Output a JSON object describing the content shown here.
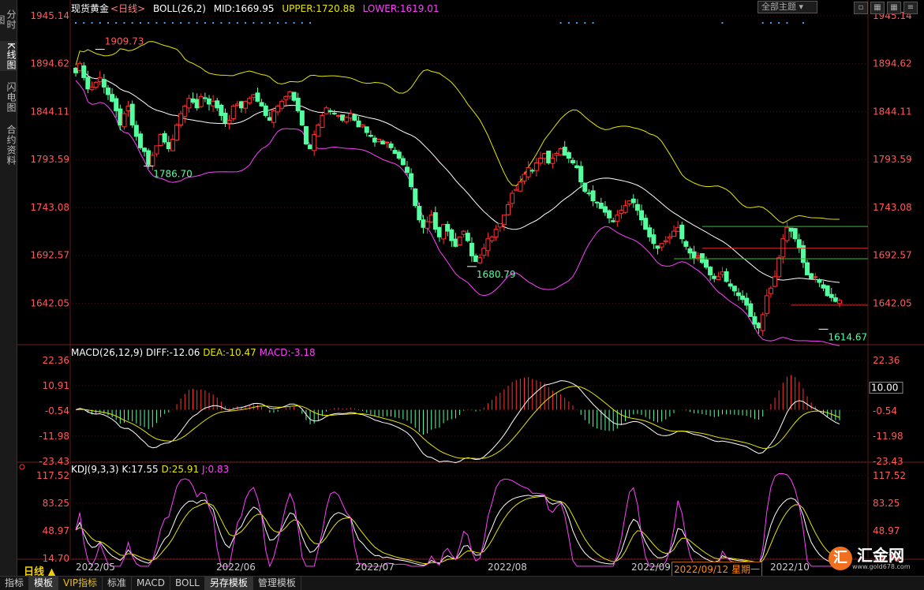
{
  "nav_tabs": [
    {
      "label": "分时图"
    },
    {
      "label": "K线图"
    },
    {
      "label": "闪电图"
    },
    {
      "label": "合约资料"
    }
  ],
  "header": {
    "symbol": "现货黄金",
    "period_tag": "<日线>",
    "boll_name": "BOLL(26,2)",
    "mid": "MID:1669.95",
    "upper": "UPPER:1720.88",
    "lower": "LOWER:1619.01",
    "theme_select": "全部主题"
  },
  "macd_header": {
    "name": "MACD(26,12,9)",
    "diff": "DIFF:-12.06",
    "dea": "DEA:-10.47",
    "macd": "MACD:-3.18"
  },
  "kdj_header": {
    "name": "KDJ(9,3,3)",
    "k": "K:17.55",
    "d": "D:25.91",
    "j": "J:0.83"
  },
  "period_label": "日线 ▲",
  "cursor_label": "2022/09/12 星期一",
  "bottom_tabs": [
    "指标",
    "模板",
    "VIP指标",
    "标准",
    "MACD",
    "BOLL",
    "另存模板",
    "管理模板"
  ],
  "logo": {
    "mark": "汇",
    "name": "汇金网",
    "site": "www.gold678.com"
  },
  "colors": {
    "up": "#ff3232",
    "down": "#54ffa0",
    "mid": "#ffffff",
    "upper": "#e6e600",
    "lower": "#ff40ff",
    "axis_text": "#ff5a5a",
    "grid": "#3a1a1a",
    "hline_green": "#30c030",
    "hline_red": "#e03030",
    "dots": "#4aa0ff"
  },
  "chart_data": {
    "type": "candlestick",
    "price_axis": {
      "ticks": [
        "1945.14",
        "1894.62",
        "1844.11",
        "1793.59",
        "1743.08",
        "1692.57",
        "1642.05"
      ],
      "range": [
        1945.14,
        1600
      ]
    },
    "macd_axis": {
      "ticks": [
        "22.36",
        "10.91",
        "-0.54",
        "-11.98",
        "-23.43"
      ],
      "range": [
        22.36,
        -23.43
      ],
      "cursor_value": "10.00"
    },
    "kdj_axis": {
      "ticks": [
        "117.52",
        "83.25",
        "48.97",
        "14.70"
      ],
      "range": [
        117.52,
        14.7
      ]
    },
    "x_labels": [
      "2022/05",
      "2022/06",
      "2022/07",
      "2022/08",
      "2022/09",
      "2022/10"
    ],
    "annotations": [
      {
        "text": "1909.73",
        "price": 1909.73,
        "index": 6
      },
      {
        "text": "1786.70",
        "price": 1786.7,
        "index": 18
      },
      {
        "text": "1680.79",
        "price": 1680.79,
        "index": 98
      },
      {
        "text": "1614.67",
        "price": 1614.67,
        "index": 185
      }
    ],
    "horizontal_lines": [
      {
        "price": 1723,
        "color": "green",
        "from_index": 155
      },
      {
        "price": 1700,
        "color": "red",
        "from_index": 155
      },
      {
        "price": 1689,
        "color": "green",
        "from_index": 148
      },
      {
        "price": 1640,
        "color": "red",
        "from_index": 177
      }
    ],
    "closes": [
      1885,
      1895,
      1880,
      1868,
      1870,
      1875,
      1880,
      1870,
      1862,
      1855,
      1845,
      1830,
      1842,
      1850,
      1830,
      1818,
      1806,
      1802,
      1788,
      1798,
      1808,
      1820,
      1812,
      1805,
      1815,
      1830,
      1842,
      1850,
      1858,
      1854,
      1848,
      1860,
      1858,
      1852,
      1855,
      1848,
      1840,
      1832,
      1835,
      1850,
      1852,
      1848,
      1855,
      1858,
      1862,
      1855,
      1850,
      1840,
      1835,
      1845,
      1850,
      1855,
      1860,
      1865,
      1856,
      1845,
      1830,
      1810,
      1805,
      1820,
      1830,
      1840,
      1848,
      1845,
      1842,
      1840,
      1835,
      1838,
      1842,
      1835,
      1828,
      1830,
      1822,
      1818,
      1812,
      1815,
      1810,
      1812,
      1806,
      1800,
      1795,
      1788,
      1780,
      1765,
      1745,
      1730,
      1722,
      1728,
      1735,
      1720,
      1712,
      1725,
      1718,
      1708,
      1702,
      1712,
      1718,
      1708,
      1692,
      1686,
      1690,
      1700,
      1710,
      1712,
      1720,
      1726,
      1735,
      1746,
      1758,
      1762,
      1770,
      1778,
      1785,
      1782,
      1790,
      1795,
      1800,
      1790,
      1795,
      1800,
      1805,
      1798,
      1795,
      1790,
      1785,
      1770,
      1760,
      1758,
      1750,
      1748,
      1742,
      1738,
      1732,
      1728,
      1735,
      1740,
      1745,
      1750,
      1748,
      1740,
      1730,
      1720,
      1712,
      1705,
      1700,
      1705,
      1708,
      1712,
      1718,
      1722,
      1710,
      1702,
      1695,
      1690,
      1692,
      1685,
      1680,
      1672,
      1668,
      1670,
      1675,
      1665,
      1660,
      1655,
      1650,
      1646,
      1640,
      1628,
      1620,
      1616,
      1630,
      1650,
      1658,
      1670,
      1690,
      1710,
      1722,
      1718,
      1710,
      1700,
      1685,
      1672,
      1668,
      1670,
      1664,
      1658,
      1650,
      1648,
      1644,
      1645
    ]
  }
}
